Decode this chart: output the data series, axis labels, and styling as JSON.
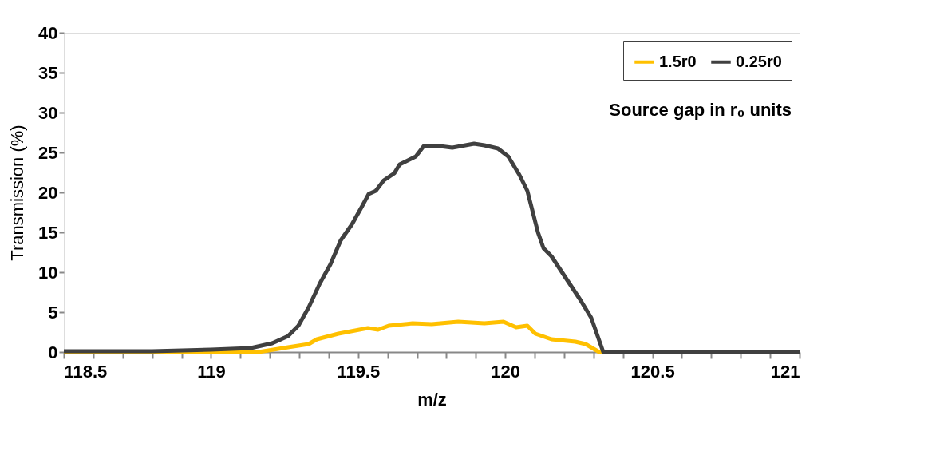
{
  "chart_data": {
    "type": "line",
    "xlabel": "m/z",
    "ylabel": "Transmission (%)",
    "annotations": [
      "Source gap in r₀ units"
    ],
    "xlim": [
      118.5,
      121
    ],
    "ylim": [
      0,
      40
    ],
    "xticks": [
      118.5,
      {
        "value": 118.6,
        "label": null
      },
      {
        "value": 118.7,
        "label": null
      },
      {
        "value": 118.8,
        "label": null
      },
      {
        "value": 118.9,
        "label": null
      },
      119,
      {
        "value": 119.1,
        "label": null
      },
      {
        "value": 119.2,
        "label": null
      },
      {
        "value": 119.3,
        "label": null
      },
      {
        "value": 119.4,
        "label": null
      },
      119.5,
      {
        "value": 119.6,
        "label": null
      },
      {
        "value": 119.7,
        "label": null
      },
      {
        "value": 119.8,
        "label": null
      },
      {
        "value": 119.9,
        "label": null
      },
      120,
      {
        "value": 120.1,
        "label": null
      },
      {
        "value": 120.2,
        "label": null
      },
      {
        "value": 120.3,
        "label": null
      },
      {
        "value": 120.4,
        "label": null
      },
      120.5,
      {
        "value": 120.6,
        "label": null
      },
      {
        "value": 120.7,
        "label": null
      },
      {
        "value": 120.8,
        "label": null
      },
      {
        "value": 120.9,
        "label": null
      },
      121
    ],
    "yticks": [
      0,
      5,
      10,
      15,
      20,
      25,
      30,
      35,
      40
    ],
    "grid": false,
    "legend": "top right",
    "marker": "none",
    "line_style": "solid",
    "series": [
      {
        "name": "1.5r0",
        "color": "#ffc000",
        "x": [
          118.5,
          119.162,
          119.262,
          119.332,
          119.36,
          119.433,
          119.533,
          119.568,
          119.604,
          119.685,
          119.75,
          119.84,
          119.929,
          119.994,
          120.037,
          120.075,
          120.102,
          120.157,
          120.238,
          120.273,
          120.319,
          121
        ],
        "values": [
          0,
          0,
          0.6,
          1.0,
          1.6,
          2.3,
          3.0,
          2.8,
          3.3,
          3.6,
          3.5,
          3.8,
          3.6,
          3.8,
          3.1,
          3.3,
          2.3,
          1.6,
          1.3,
          1.0,
          0,
          0
        ]
      },
      {
        "name": "0.25r0",
        "color": "#404040",
        "x": [
          118.5,
          118.8,
          119.0,
          119.135,
          119.208,
          119.262,
          119.297,
          119.332,
          119.37,
          119.406,
          119.441,
          119.479,
          119.514,
          119.536,
          119.56,
          119.587,
          119.623,
          119.641,
          119.696,
          119.723,
          119.777,
          119.82,
          119.894,
          119.929,
          119.975,
          120.01,
          120.048,
          120.075,
          120.111,
          120.13,
          120.157,
          120.2,
          120.254,
          120.292,
          120.333,
          121
        ],
        "values": [
          0.1,
          0.1,
          0.3,
          0.5,
          1.1,
          2.0,
          3.3,
          5.6,
          8.6,
          11.0,
          14.0,
          16.0,
          18.3,
          19.8,
          20.2,
          21.5,
          22.4,
          23.5,
          24.5,
          25.8,
          25.8,
          25.6,
          26.1,
          25.9,
          25.5,
          24.5,
          22.2,
          20.2,
          15.0,
          13.0,
          12.0,
          9.6,
          6.6,
          4.3,
          0,
          0
        ]
      }
    ]
  }
}
